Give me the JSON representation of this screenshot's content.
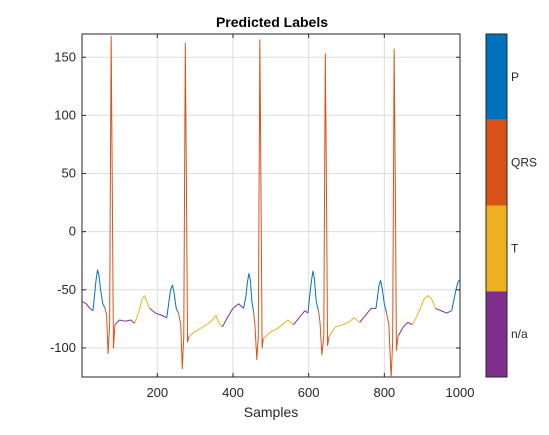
{
  "chart_data": {
    "type": "line",
    "title": "Predicted Labels",
    "xlabel": "Samples",
    "ylabel": "",
    "xlim": [
      1,
      1000
    ],
    "ylim": [
      -125,
      170
    ],
    "grid": true,
    "x_ticks": [
      200,
      400,
      600,
      800,
      1000
    ],
    "x_tick_labels": [
      "200",
      "400",
      "600",
      "800",
      "1000"
    ],
    "y_ticks": [
      -100,
      -50,
      0,
      50,
      100,
      150
    ],
    "y_tick_labels": [
      "-100",
      "-50",
      "0",
      "50",
      "100",
      "150"
    ],
    "label_colors": {
      "P": "#0072BD",
      "QRS": "#D95319",
      "T": "#EDB120",
      "n/a": "#7E2F8E"
    },
    "colorbar": {
      "labels": [
        "n/a",
        "T",
        "QRS",
        "P"
      ],
      "colors": [
        "#7E2F8E",
        "#EDB120",
        "#D95319",
        "#0072BD"
      ]
    },
    "series": [
      {
        "label": "n/a",
        "points": [
          [
            1,
            -60
          ],
          [
            12,
            -62
          ],
          [
            22,
            -66
          ],
          [
            30,
            -68
          ]
        ]
      },
      {
        "label": "P",
        "points": [
          [
            30,
            -68
          ],
          [
            34,
            -55
          ],
          [
            38,
            -42
          ],
          [
            42,
            -33
          ],
          [
            46,
            -38
          ],
          [
            50,
            -50
          ],
          [
            56,
            -62
          ],
          [
            62,
            -66
          ]
        ]
      },
      {
        "label": "QRS",
        "points": [
          [
            62,
            -66
          ],
          [
            66,
            -72
          ],
          [
            70,
            -105
          ],
          [
            74,
            -80
          ],
          [
            78,
            168
          ],
          [
            81,
            40
          ],
          [
            84,
            -100
          ],
          [
            88,
            -80
          ]
        ]
      },
      {
        "label": "n/a",
        "points": [
          [
            88,
            -80
          ],
          [
            100,
            -76
          ],
          [
            115,
            -77
          ],
          [
            130,
            -76
          ],
          [
            140,
            -79
          ]
        ]
      },
      {
        "label": "T",
        "points": [
          [
            140,
            -79
          ],
          [
            150,
            -70
          ],
          [
            160,
            -58
          ],
          [
            166,
            -55
          ],
          [
            172,
            -60
          ],
          [
            180,
            -66
          ]
        ]
      },
      {
        "label": "n/a",
        "points": [
          [
            180,
            -66
          ],
          [
            195,
            -70
          ],
          [
            212,
            -72
          ],
          [
            225,
            -74
          ]
        ]
      },
      {
        "label": "P",
        "points": [
          [
            225,
            -74
          ],
          [
            230,
            -62
          ],
          [
            235,
            -50
          ],
          [
            240,
            -46
          ],
          [
            244,
            -52
          ],
          [
            250,
            -66
          ],
          [
            256,
            -70
          ]
        ]
      },
      {
        "label": "QRS",
        "points": [
          [
            256,
            -70
          ],
          [
            262,
            -80
          ],
          [
            266,
            -118
          ],
          [
            270,
            -90
          ],
          [
            274,
            162
          ],
          [
            277,
            40
          ],
          [
            280,
            -95
          ],
          [
            284,
            -90
          ]
        ]
      },
      {
        "label": "T",
        "points": [
          [
            284,
            -90
          ],
          [
            300,
            -86
          ],
          [
            320,
            -82
          ],
          [
            340,
            -78
          ],
          [
            355,
            -72
          ],
          [
            365,
            -80
          ],
          [
            372,
            -82
          ]
        ]
      },
      {
        "label": "n/a",
        "points": [
          [
            372,
            -82
          ],
          [
            385,
            -74
          ],
          [
            400,
            -66
          ],
          [
            415,
            -62
          ],
          [
            428,
            -66
          ]
        ]
      },
      {
        "label": "P",
        "points": [
          [
            428,
            -66
          ],
          [
            434,
            -56
          ],
          [
            438,
            -44
          ],
          [
            442,
            -36
          ],
          [
            446,
            -42
          ],
          [
            450,
            -60
          ],
          [
            454,
            -68
          ]
        ]
      },
      {
        "label": "QRS",
        "points": [
          [
            454,
            -68
          ],
          [
            458,
            -80
          ],
          [
            463,
            -110
          ],
          [
            467,
            -90
          ],
          [
            471,
            165
          ],
          [
            474,
            40
          ],
          [
            477,
            -100
          ],
          [
            480,
            -92
          ]
        ]
      },
      {
        "label": "T",
        "points": [
          [
            480,
            -92
          ],
          [
            500,
            -86
          ],
          [
            515,
            -84
          ],
          [
            530,
            -80
          ],
          [
            545,
            -76
          ],
          [
            560,
            -80
          ]
        ]
      },
      {
        "label": "n/a",
        "points": [
          [
            560,
            -80
          ],
          [
            575,
            -74
          ],
          [
            590,
            -68
          ],
          [
            598,
            -70
          ]
        ]
      },
      {
        "label": "P",
        "points": [
          [
            598,
            -70
          ],
          [
            602,
            -58
          ],
          [
            606,
            -46
          ],
          [
            611,
            -34
          ],
          [
            615,
            -40
          ],
          [
            620,
            -60
          ],
          [
            626,
            -68
          ]
        ]
      },
      {
        "label": "QRS",
        "points": [
          [
            626,
            -68
          ],
          [
            630,
            -78
          ],
          [
            635,
            -106
          ],
          [
            640,
            -90
          ],
          [
            644,
            153
          ],
          [
            647,
            40
          ],
          [
            650,
            -98
          ],
          [
            654,
            -90
          ]
        ]
      },
      {
        "label": "T",
        "points": [
          [
            654,
            -90
          ],
          [
            670,
            -82
          ],
          [
            690,
            -80
          ],
          [
            705,
            -78
          ],
          [
            720,
            -74
          ],
          [
            735,
            -78
          ]
        ]
      },
      {
        "label": "n/a",
        "points": [
          [
            735,
            -78
          ],
          [
            750,
            -72
          ],
          [
            765,
            -66
          ],
          [
            778,
            -66
          ]
        ]
      },
      {
        "label": "P",
        "points": [
          [
            778,
            -66
          ],
          [
            782,
            -56
          ],
          [
            786,
            -46
          ],
          [
            790,
            -42
          ],
          [
            794,
            -48
          ],
          [
            800,
            -62
          ],
          [
            806,
            -70
          ]
        ]
      },
      {
        "label": "QRS",
        "points": [
          [
            806,
            -70
          ],
          [
            812,
            -80
          ],
          [
            818,
            -125
          ],
          [
            822,
            -95
          ],
          [
            826,
            157
          ],
          [
            829,
            40
          ],
          [
            832,
            -102
          ],
          [
            836,
            -90
          ]
        ]
      },
      {
        "label": "n/a",
        "points": [
          [
            836,
            -90
          ],
          [
            850,
            -82
          ],
          [
            862,
            -78
          ],
          [
            874,
            -80
          ]
        ]
      },
      {
        "label": "T",
        "points": [
          [
            874,
            -80
          ],
          [
            890,
            -70
          ],
          [
            905,
            -58
          ],
          [
            915,
            -55
          ],
          [
            925,
            -58
          ],
          [
            935,
            -66
          ]
        ]
      },
      {
        "label": "n/a",
        "points": [
          [
            935,
            -66
          ],
          [
            950,
            -68
          ],
          [
            965,
            -70
          ],
          [
            978,
            -68
          ]
        ]
      },
      {
        "label": "P",
        "points": [
          [
            978,
            -68
          ],
          [
            983,
            -60
          ],
          [
            988,
            -52
          ],
          [
            993,
            -45
          ],
          [
            997,
            -42
          ],
          [
            1000,
            -42
          ]
        ]
      }
    ]
  }
}
